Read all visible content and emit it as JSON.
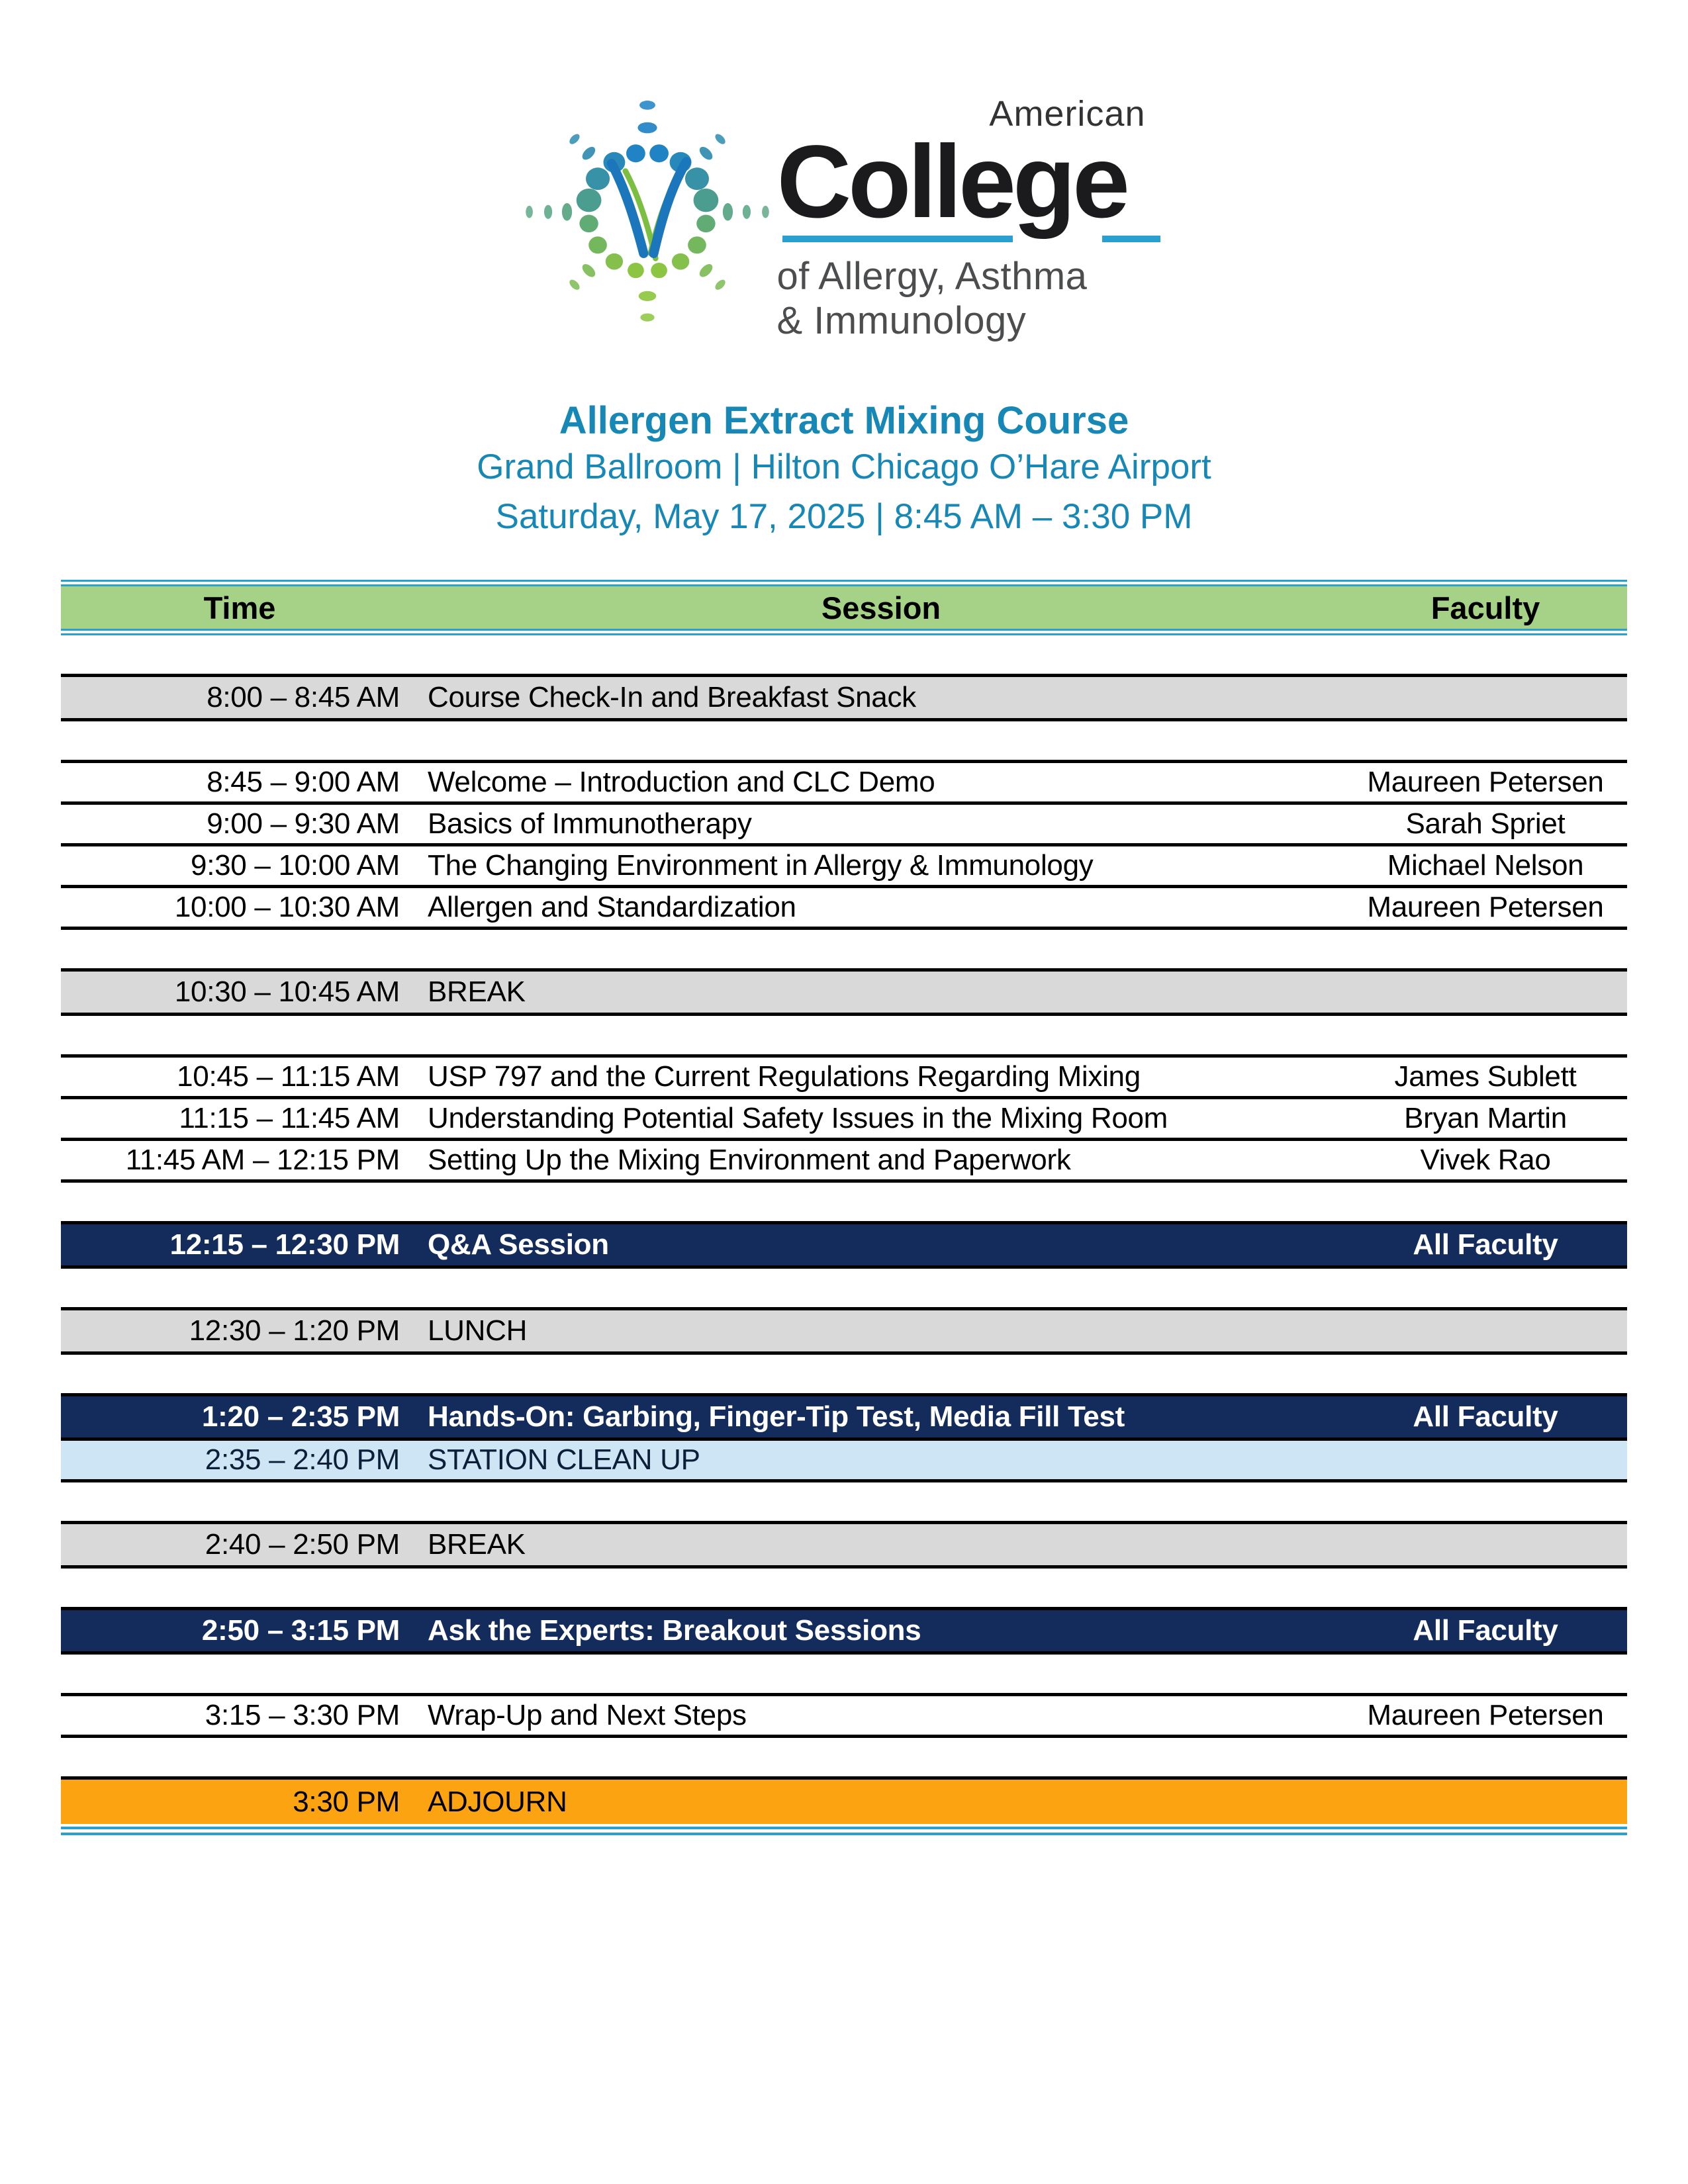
{
  "logo": {
    "american": "American",
    "college": "College",
    "sub_line1": "of Allergy, Asthma",
    "sub_line2": "& Immunology"
  },
  "header": {
    "title": "Allergen Extract Mixing Course",
    "subtitle1": "Grand Ballroom | Hilton Chicago O’Hare Airport",
    "subtitle2": "Saturday, May 17, 2025 | 8:45 AM – 3:30 PM"
  },
  "colors": {
    "title_blue": "#1787B6",
    "header_green": "#A5D286",
    "teal_line": "#2AA0D0",
    "navy_row": "#142C5C",
    "gray_row": "#D9D9D9",
    "light_blue_row": "#CDE5F4",
    "orange_row": "#FCA311",
    "logo_dot_blue": "#1F82C4",
    "logo_dot_green": "#8DC640"
  },
  "table": {
    "columns": {
      "time": "Time",
      "session": "Session",
      "faculty": "Faculty"
    },
    "groups": [
      {
        "rows": [
          {
            "time": "8:00 – 8:45 AM",
            "session": "Course Check-In and Breakfast Snack",
            "faculty": "",
            "style": "gray"
          }
        ]
      },
      {
        "rows": [
          {
            "time": "8:45 – 9:00 AM",
            "session": "Welcome – Introduction and CLC Demo",
            "faculty": "Maureen Petersen",
            "style": "plain"
          },
          {
            "time": "9:00 – 9:30 AM",
            "session": "Basics of Immunotherapy",
            "faculty": "Sarah Spriet",
            "style": "plain"
          },
          {
            "time": "9:30 – 10:00 AM",
            "session": "The Changing Environment in Allergy & Immunology",
            "faculty": "Michael Nelson",
            "style": "plain"
          },
          {
            "time": "10:00 – 10:30 AM",
            "session": "Allergen and Standardization",
            "faculty": "Maureen Petersen",
            "style": "plain"
          }
        ]
      },
      {
        "rows": [
          {
            "time": "10:30 – 10:45 AM",
            "session": "BREAK",
            "faculty": "",
            "style": "gray"
          }
        ]
      },
      {
        "rows": [
          {
            "time": "10:45 – 11:15 AM",
            "session": "USP 797 and the Current Regulations Regarding Mixing",
            "faculty": "James Sublett",
            "style": "plain"
          },
          {
            "time": "11:15 – 11:45 AM",
            "session": "Understanding Potential Safety Issues in the Mixing Room",
            "faculty": "Bryan Martin",
            "style": "plain"
          },
          {
            "time": "11:45 AM – 12:15 PM",
            "session": "Setting Up the Mixing Environment and Paperwork",
            "faculty": "Vivek Rao",
            "style": "plain"
          }
        ]
      },
      {
        "rows": [
          {
            "time": "12:15 – 12:30 PM",
            "session": "Q&A Session",
            "faculty": "All Faculty",
            "style": "navy"
          }
        ]
      },
      {
        "rows": [
          {
            "time": "12:30 – 1:20 PM",
            "session": "LUNCH",
            "faculty": "",
            "style": "gray"
          }
        ]
      },
      {
        "rows": [
          {
            "time": "1:20 – 2:35 PM",
            "session": "Hands-On: Garbing, Finger-Tip Test, Media Fill Test",
            "faculty": "All Faculty",
            "style": "navy"
          },
          {
            "time": "2:35 – 2:40 PM",
            "session": "STATION CLEAN UP",
            "faculty": "",
            "style": "lightblue"
          }
        ]
      },
      {
        "rows": [
          {
            "time": "2:40 – 2:50 PM",
            "session": "BREAK",
            "faculty": "",
            "style": "gray"
          }
        ]
      },
      {
        "rows": [
          {
            "time": "2:50 – 3:15 PM",
            "session": "Ask the Experts: Breakout Sessions",
            "faculty": "All Faculty",
            "style": "navy"
          }
        ]
      },
      {
        "rows": [
          {
            "time": "3:15 – 3:30 PM",
            "session": "Wrap-Up and Next Steps",
            "faculty": "Maureen Petersen",
            "style": "plain"
          }
        ]
      },
      {
        "rows": [
          {
            "time": "3:30 PM",
            "session": "ADJOURN",
            "faculty": "",
            "style": "orange"
          }
        ]
      }
    ]
  }
}
